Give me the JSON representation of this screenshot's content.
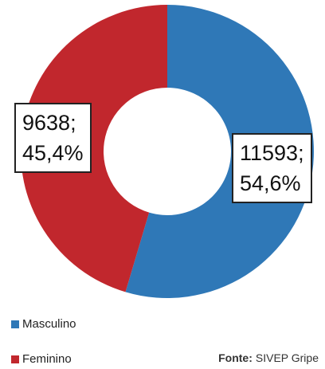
{
  "chart_data": {
    "type": "donut",
    "categories": [
      "Masculino",
      "Feminino"
    ],
    "values": [
      11593,
      9638
    ],
    "value_labels": [
      "11593;\n54,6%",
      "9638;\n45,4%"
    ],
    "colors": [
      "#2f78b7",
      "#c1272d"
    ],
    "source": {
      "label": "Fonte:",
      "text": "SIVEP Gripe"
    }
  }
}
